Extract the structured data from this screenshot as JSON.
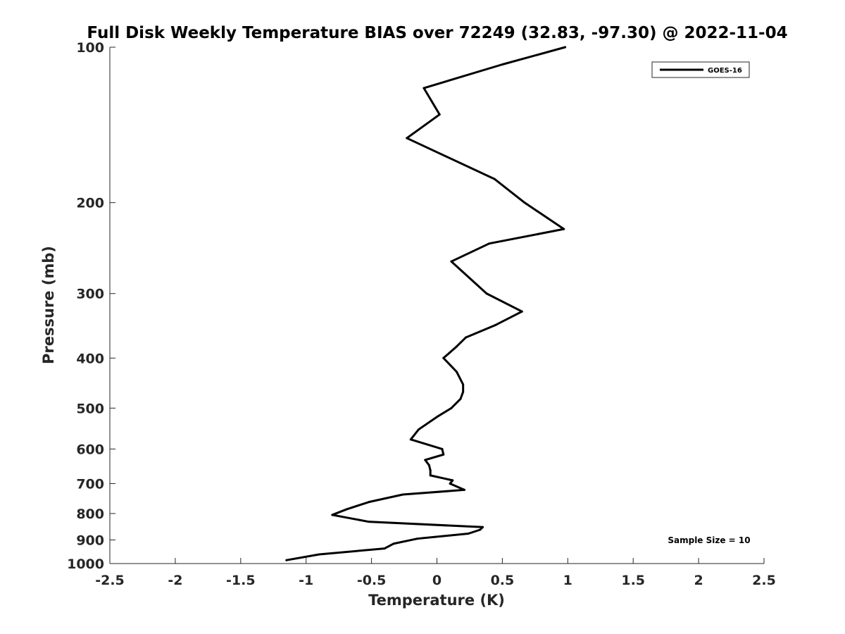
{
  "chart_data": {
    "type": "line",
    "title": "Full Disk Weekly Temperature BIAS over 72249 (32.83, -97.30) @ 2022-11-04",
    "xlabel": "Temperature (K)",
    "ylabel": "Pressure (mb)",
    "xlim": [
      -2.5,
      2.5
    ],
    "ylim": [
      1000,
      100
    ],
    "y_scale": "log",
    "y_reversed": true,
    "xticks": [
      "-2.5",
      "-2",
      "-1.5",
      "-1",
      "-0.5",
      "0",
      "0.5",
      "1",
      "1.5",
      "2",
      "2.5"
    ],
    "xtick_values": [
      -2.5,
      -2,
      -1.5,
      -1,
      -0.5,
      0,
      0.5,
      1,
      1.5,
      2,
      2.5
    ],
    "yticks": [
      "100",
      "200",
      "300",
      "400",
      "500",
      "600",
      "700",
      "800",
      "900",
      "1000"
    ],
    "ytick_values": [
      100,
      200,
      300,
      400,
      500,
      600,
      700,
      800,
      900,
      1000
    ],
    "grid": false,
    "legend_position": "top-right",
    "annotation": "Sample Size = 10",
    "series": [
      {
        "name": "GOES-16",
        "color": "#000000",
        "points": [
          {
            "x": 0.98,
            "y": 100
          },
          {
            "x": 0.5,
            "y": 108
          },
          {
            "x": -0.1,
            "y": 120
          },
          {
            "x": 0.02,
            "y": 135
          },
          {
            "x": -0.23,
            "y": 150
          },
          {
            "x": 0.44,
            "y": 180
          },
          {
            "x": 0.67,
            "y": 200
          },
          {
            "x": 0.97,
            "y": 225
          },
          {
            "x": 0.4,
            "y": 240
          },
          {
            "x": 0.11,
            "y": 260
          },
          {
            "x": 0.38,
            "y": 300
          },
          {
            "x": 0.65,
            "y": 325
          },
          {
            "x": 0.45,
            "y": 345
          },
          {
            "x": 0.22,
            "y": 365
          },
          {
            "x": 0.15,
            "y": 380
          },
          {
            "x": 0.05,
            "y": 400
          },
          {
            "x": 0.15,
            "y": 425
          },
          {
            "x": 0.2,
            "y": 450
          },
          {
            "x": 0.2,
            "y": 465
          },
          {
            "x": 0.18,
            "y": 480
          },
          {
            "x": 0.11,
            "y": 500
          },
          {
            "x": 0.0,
            "y": 520
          },
          {
            "x": -0.14,
            "y": 550
          },
          {
            "x": -0.2,
            "y": 575
          },
          {
            "x": 0.04,
            "y": 600
          },
          {
            "x": 0.05,
            "y": 615
          },
          {
            "x": -0.09,
            "y": 630
          },
          {
            "x": -0.06,
            "y": 645
          },
          {
            "x": -0.05,
            "y": 660
          },
          {
            "x": -0.05,
            "y": 675
          },
          {
            "x": 0.12,
            "y": 690
          },
          {
            "x": 0.1,
            "y": 700
          },
          {
            "x": 0.21,
            "y": 720
          },
          {
            "x": -0.26,
            "y": 735
          },
          {
            "x": -0.52,
            "y": 760
          },
          {
            "x": -0.69,
            "y": 785
          },
          {
            "x": -0.8,
            "y": 805
          },
          {
            "x": -0.52,
            "y": 830
          },
          {
            "x": 0.35,
            "y": 850
          },
          {
            "x": 0.33,
            "y": 860
          },
          {
            "x": 0.24,
            "y": 875
          },
          {
            "x": -0.15,
            "y": 895
          },
          {
            "x": -0.33,
            "y": 915
          },
          {
            "x": -0.4,
            "y": 935
          },
          {
            "x": -0.9,
            "y": 960
          },
          {
            "x": -1.15,
            "y": 985
          }
        ]
      }
    ]
  }
}
